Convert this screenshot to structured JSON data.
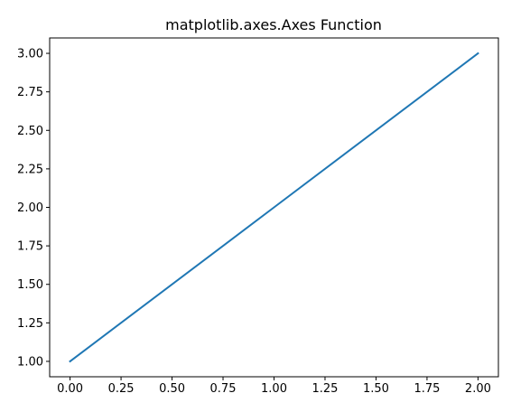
{
  "chart_data": {
    "type": "line",
    "title": "matplotlib.axes.Axes Function",
    "xlabel": "",
    "ylabel": "",
    "xlim": [
      -0.1,
      2.1
    ],
    "ylim": [
      0.9,
      3.1
    ],
    "xticks": [
      "0.00",
      "0.25",
      "0.50",
      "0.75",
      "1.00",
      "1.25",
      "1.50",
      "1.75",
      "2.00"
    ],
    "yticks": [
      "1.00",
      "1.25",
      "1.50",
      "1.75",
      "2.00",
      "2.25",
      "2.50",
      "2.75",
      "3.00"
    ],
    "grid": false,
    "series": [
      {
        "x": [
          0,
          1,
          2
        ],
        "y": [
          1,
          2,
          3
        ],
        "color": "#1f77b4"
      }
    ]
  }
}
